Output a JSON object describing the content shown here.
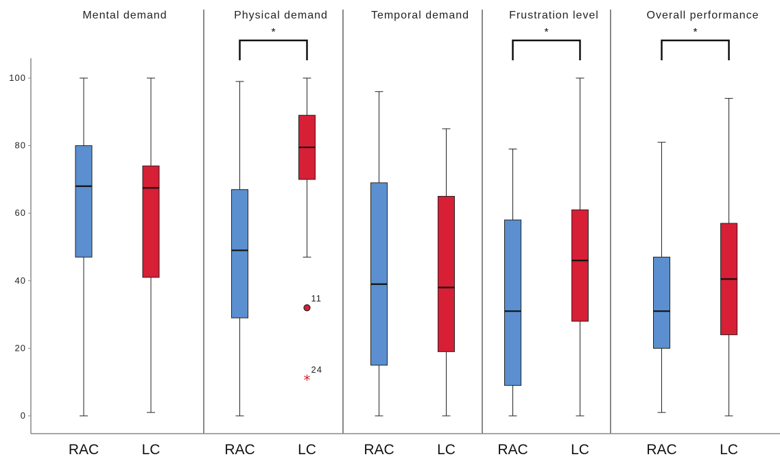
{
  "chart_data": {
    "type": "boxplot",
    "ylim": [
      0,
      100
    ],
    "yticks": [
      0,
      20,
      40,
      60,
      80,
      100
    ],
    "categories": [
      "RAC",
      "LC"
    ],
    "colors": {
      "RAC": "#5b8fcf",
      "LC": "#d71f36"
    },
    "panels": [
      {
        "title": "Mental demand",
        "significance": "",
        "boxes": [
          {
            "group": "RAC",
            "min": 0,
            "q1": 47,
            "median": 68,
            "q3": 80,
            "max": 100
          },
          {
            "group": "LC",
            "min": 1,
            "q1": 41,
            "median": 67.5,
            "q3": 74,
            "max": 100
          }
        ],
        "outliers": []
      },
      {
        "title": "Physical demand",
        "significance": "*",
        "boxes": [
          {
            "group": "RAC",
            "min": 0,
            "q1": 29,
            "median": 49,
            "q3": 67,
            "max": 99
          },
          {
            "group": "LC",
            "min": 47,
            "q1": 70,
            "median": 79.5,
            "q3": 89,
            "max": 100
          }
        ],
        "outliers": [
          {
            "group": "LC",
            "value": 32,
            "label": "11",
            "shape": "circle"
          },
          {
            "group": "LC",
            "value": 11,
            "label": "24",
            "shape": "star"
          }
        ]
      },
      {
        "title": "Temporal demand",
        "significance": "",
        "boxes": [
          {
            "group": "RAC",
            "min": 0,
            "q1": 15,
            "median": 39,
            "q3": 69,
            "max": 96
          },
          {
            "group": "LC",
            "min": 0,
            "q1": 19,
            "median": 38,
            "q3": 65,
            "max": 85
          }
        ],
        "outliers": []
      },
      {
        "title": "Frustration level",
        "significance": "*",
        "boxes": [
          {
            "group": "RAC",
            "min": 0,
            "q1": 9,
            "median": 31,
            "q3": 58,
            "max": 79
          },
          {
            "group": "LC",
            "min": 0,
            "q1": 28,
            "median": 46,
            "q3": 61,
            "max": 100
          }
        ],
        "outliers": []
      },
      {
        "title": "Overall performance",
        "significance": "*",
        "boxes": [
          {
            "group": "RAC",
            "min": 1,
            "q1": 20,
            "median": 31,
            "q3": 47,
            "max": 81
          },
          {
            "group": "LC",
            "min": 0,
            "q1": 24,
            "median": 40.5,
            "q3": 57,
            "max": 94
          }
        ],
        "outliers": []
      }
    ]
  }
}
